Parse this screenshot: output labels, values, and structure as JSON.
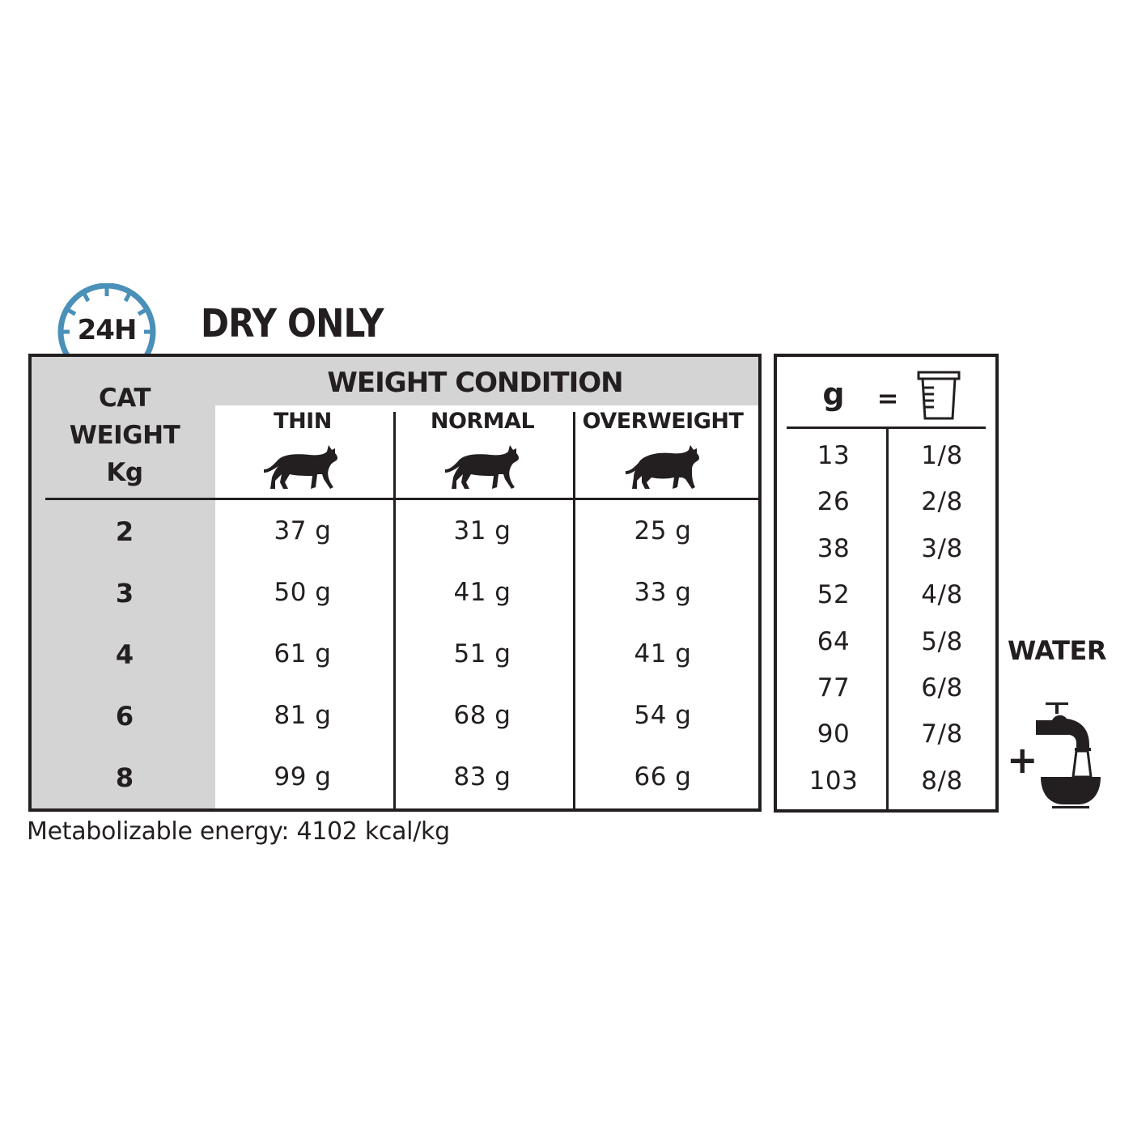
{
  "header": {
    "clock_label": "24H",
    "title": "DRY ONLY",
    "clock_color": "#4a90b8"
  },
  "feeding_table": {
    "row_header": [
      "CAT",
      "WEIGHT",
      "Kg"
    ],
    "group_header": "WEIGHT CONDITION",
    "columns": [
      {
        "label": "THIN",
        "icon": "thin-cat-icon"
      },
      {
        "label": "NORMAL",
        "icon": "normal-cat-icon"
      },
      {
        "label": "OVERWEIGHT",
        "icon": "overweight-cat-icon"
      }
    ],
    "rows": [
      {
        "weight": "2",
        "values": [
          "37 g",
          "31 g",
          "25 g"
        ]
      },
      {
        "weight": "3",
        "values": [
          "50 g",
          "41 g",
          "33 g"
        ]
      },
      {
        "weight": "4",
        "values": [
          "61 g",
          "51 g",
          "41 g"
        ]
      },
      {
        "weight": "6",
        "values": [
          "81 g",
          "68 g",
          "54 g"
        ]
      },
      {
        "weight": "8",
        "values": [
          "99 g",
          "83 g",
          "66 g"
        ]
      }
    ],
    "shade_color": "#d4d4d4"
  },
  "cup_table": {
    "header_left": "g",
    "header_equals": "=",
    "header_icon": "measuring-cup-icon",
    "rows": [
      [
        "13",
        "1/8"
      ],
      [
        "26",
        "2/8"
      ],
      [
        "38",
        "3/8"
      ],
      [
        "52",
        "4/8"
      ],
      [
        "64",
        "5/8"
      ],
      [
        "77",
        "6/8"
      ],
      [
        "90",
        "7/8"
      ],
      [
        "103",
        "8/8"
      ]
    ]
  },
  "water": {
    "label": "WATER",
    "plus": "+",
    "icon": "water-tap-bowl-icon"
  },
  "footer": {
    "energy": "Metabolizable energy: 4102 kcal/kg"
  }
}
